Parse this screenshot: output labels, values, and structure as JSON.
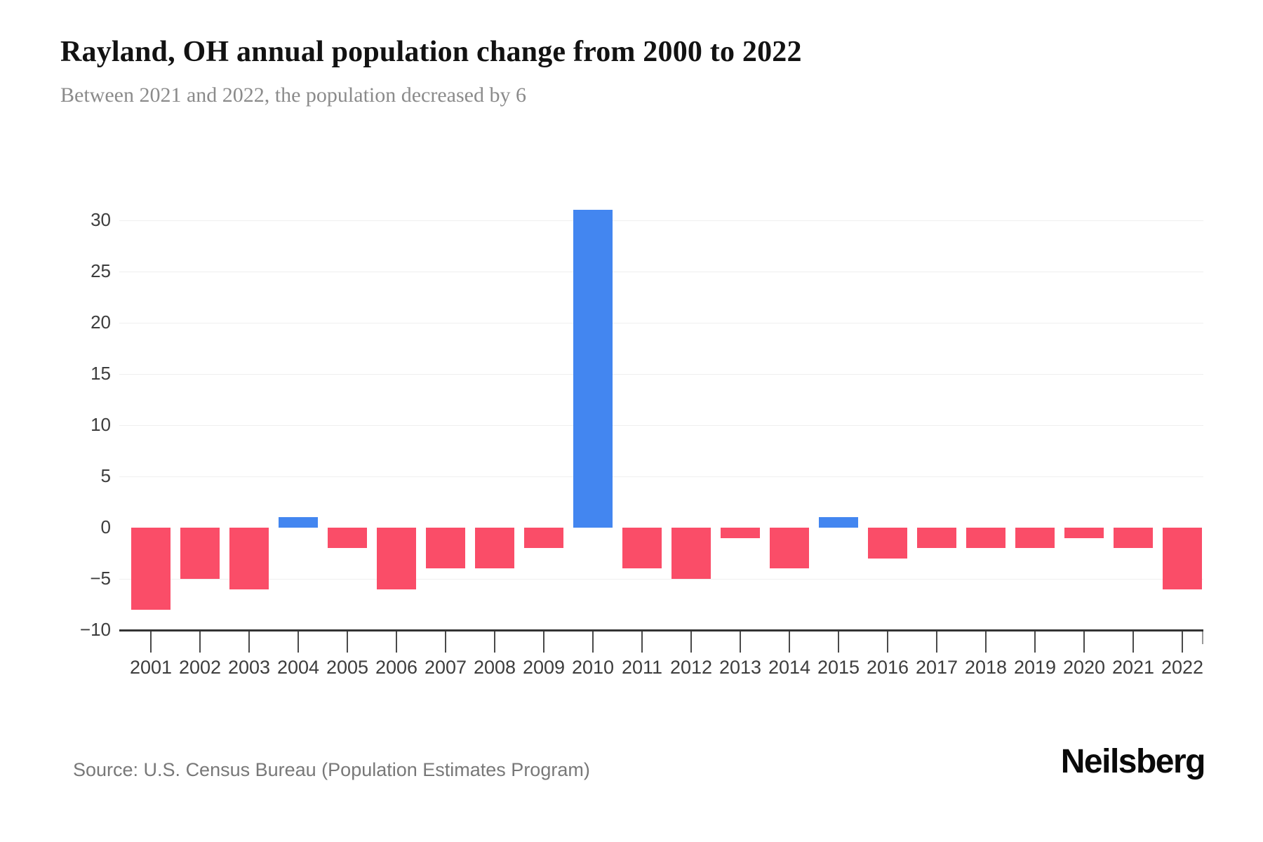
{
  "header": {
    "title": "Rayland, OH annual population change from 2000 to 2022",
    "subtitle": "Between 2021 and 2022, the population decreased by 6"
  },
  "chart_data": {
    "type": "bar",
    "title": "Rayland, OH annual population change from 2000 to 2022",
    "subtitle": "Between 2021 and 2022, the population decreased by 6",
    "categories": [
      "2001",
      "2002",
      "2003",
      "2004",
      "2005",
      "2006",
      "2007",
      "2008",
      "2009",
      "2010",
      "2011",
      "2012",
      "2013",
      "2014",
      "2015",
      "2016",
      "2017",
      "2018",
      "2019",
      "2020",
      "2021",
      "2022"
    ],
    "values": [
      -8,
      -5,
      -6,
      1,
      -2,
      -6,
      -4,
      -4,
      -2,
      31,
      -4,
      -5,
      -1,
      -4,
      1,
      -3,
      -2,
      -2,
      -2,
      -1,
      -2,
      -6
    ],
    "xlabel": "",
    "ylabel": "",
    "ylim": [
      -10,
      31.5
    ],
    "yticks": [
      30,
      25,
      20,
      15,
      10,
      5,
      0,
      -5,
      -10
    ],
    "gridline_ticks": [
      30,
      25,
      20,
      15,
      10,
      5,
      -5
    ],
    "grid": true,
    "legend": false,
    "colors": {
      "positive": "#4386f0",
      "negative": "#fa4d68",
      "gridline": "#efefef",
      "axis": "#333333",
      "tick_text": "#3d3d3d"
    }
  },
  "footer": {
    "source": "Source: U.S. Census Bureau (Population Estimates Program)",
    "logo": "Neilsberg"
  }
}
